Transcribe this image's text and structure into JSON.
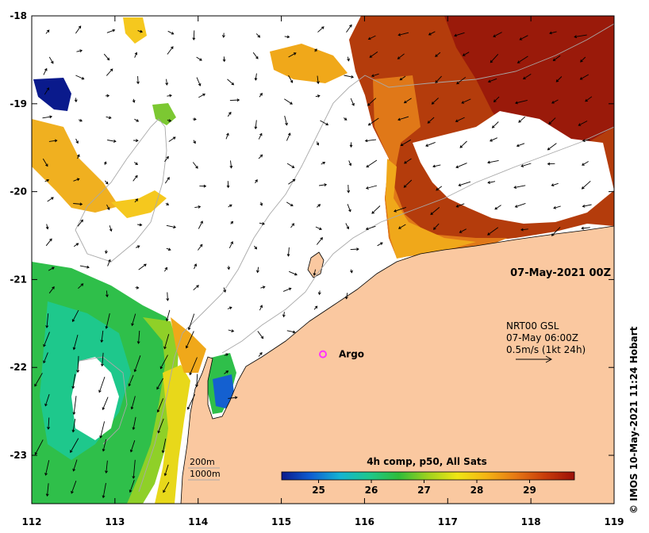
{
  "map": {
    "date_label": "07-May-2021 00Z",
    "x_ticks": [
      "112",
      "113",
      "114",
      "115",
      "116",
      "117",
      "118",
      "119"
    ],
    "y_ticks": [
      "-18",
      "-19",
      "-20",
      "-21",
      "-22",
      "-23"
    ],
    "lon_range": [
      112,
      119
    ],
    "lat_range": [
      -23.55,
      -18
    ]
  },
  "current_legend": {
    "line1": "NRT00 GSL",
    "line2": "07-May 06:00Z",
    "line3": "0.5m/s (1kt 24h)"
  },
  "marker": {
    "label": "Argo",
    "lon": 115.5,
    "lat": -21.85,
    "color": "#ff33ff"
  },
  "isobaths": {
    "deep": "200m",
    "shallow": "1000m"
  },
  "colorbar": {
    "title": "4h comp, p50, All Sats",
    "ticks": [
      "25",
      "26",
      "27",
      "28",
      "29"
    ],
    "range": [
      24.3,
      29.85
    ],
    "colors": [
      "#0a1a8c",
      "#0f5fd2",
      "#14b4d2",
      "#1ec88c",
      "#2ebd3a",
      "#9fd21e",
      "#f0e614",
      "#f5b414",
      "#e67814",
      "#c83c0a",
      "#9c1008"
    ]
  },
  "credit": "© IMOS 10-May-2021 11:24 Hobart",
  "colors": {
    "land": "#fac8a0",
    "coast": "#000000"
  }
}
